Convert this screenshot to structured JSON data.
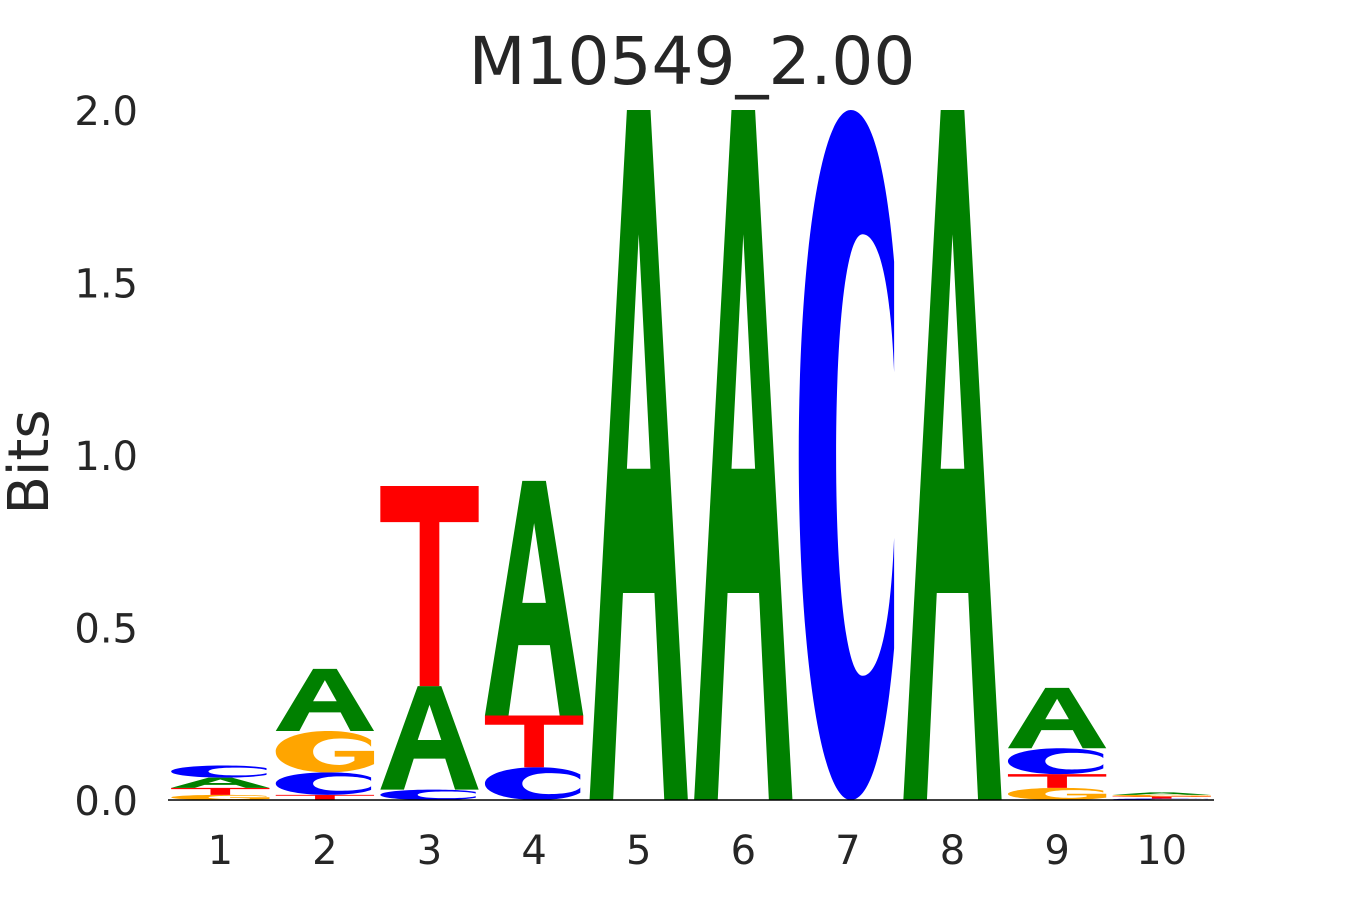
{
  "chart_data": {
    "type": "sequence-logo",
    "title": "M10549_2.00",
    "ylabel": "Bits",
    "ylim": [
      0,
      2.0
    ],
    "yticks": [
      "0.0",
      "0.5",
      "1.0",
      "1.5",
      "2.0"
    ],
    "ytick_values": [
      0,
      0.5,
      1.0,
      1.5,
      2.0
    ],
    "positions": [
      "1",
      "2",
      "3",
      "4",
      "5",
      "6",
      "7",
      "8",
      "9",
      "10"
    ],
    "colors": {
      "A": "#008000",
      "C": "#0000ff",
      "G": "#ffa500",
      "T": "#ff0000"
    },
    "stacks": [
      [
        {
          "letter": "G",
          "value": 0.015
        },
        {
          "letter": "T",
          "value": 0.02
        },
        {
          "letter": "A",
          "value": 0.03
        },
        {
          "letter": "C",
          "value": 0.035
        }
      ],
      [
        {
          "letter": "T",
          "value": 0.015
        },
        {
          "letter": "C",
          "value": 0.065
        },
        {
          "letter": "G",
          "value": 0.12
        },
        {
          "letter": "A",
          "value": 0.18
        }
      ],
      [
        {
          "letter": "C",
          "value": 0.03
        },
        {
          "letter": "A",
          "value": 0.3
        },
        {
          "letter": "T",
          "value": 0.58
        }
      ],
      [
        {
          "letter": "C",
          "value": 0.095
        },
        {
          "letter": "T",
          "value": 0.15
        },
        {
          "letter": "A",
          "value": 0.68
        }
      ],
      [
        {
          "letter": "A",
          "value": 2.0
        }
      ],
      [
        {
          "letter": "A",
          "value": 2.0
        }
      ],
      [
        {
          "letter": "C",
          "value": 2.0
        }
      ],
      [
        {
          "letter": "A",
          "value": 2.0
        }
      ],
      [
        {
          "letter": "G",
          "value": 0.035
        },
        {
          "letter": "T",
          "value": 0.04
        },
        {
          "letter": "C",
          "value": 0.075
        },
        {
          "letter": "A",
          "value": 0.175
        }
      ],
      [
        {
          "letter": "C",
          "value": 0.004
        },
        {
          "letter": "T",
          "value": 0.006
        },
        {
          "letter": "G",
          "value": 0.005
        },
        {
          "letter": "A",
          "value": 0.007
        }
      ]
    ]
  }
}
